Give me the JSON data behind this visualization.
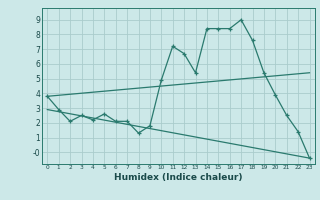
{
  "title": "",
  "xlabel": "Humidex (Indice chaleur)",
  "bg_color": "#cce8e8",
  "grid_color": "#aacccc",
  "line_color": "#2a7a6e",
  "xlim": [
    -0.5,
    23.5
  ],
  "ylim": [
    -0.8,
    9.8
  ],
  "xticks": [
    0,
    1,
    2,
    3,
    4,
    5,
    6,
    7,
    8,
    9,
    10,
    11,
    12,
    13,
    14,
    15,
    16,
    17,
    18,
    19,
    20,
    21,
    22,
    23
  ],
  "yticks": [
    0,
    1,
    2,
    3,
    4,
    5,
    6,
    7,
    8,
    9
  ],
  "ytick_labels": [
    "-0",
    "1",
    "2",
    "3",
    "4",
    "5",
    "6",
    "7",
    "8",
    "9"
  ],
  "curve1_x": [
    0,
    1,
    2,
    3,
    4,
    5,
    6,
    7,
    8,
    9,
    10,
    11,
    12,
    13,
    14,
    15,
    16,
    17,
    18,
    19,
    20,
    21,
    22,
    23
  ],
  "curve1_y": [
    3.8,
    2.9,
    2.1,
    2.5,
    2.2,
    2.6,
    2.1,
    2.1,
    1.3,
    1.8,
    4.9,
    7.2,
    6.7,
    5.4,
    8.4,
    8.4,
    8.4,
    9.0,
    7.6,
    5.4,
    3.9,
    2.5,
    1.4,
    -0.4
  ],
  "line2_x": [
    0,
    23
  ],
  "line2_y": [
    3.8,
    5.4
  ],
  "line3_x": [
    0,
    23
  ],
  "line3_y": [
    2.9,
    -0.4
  ]
}
